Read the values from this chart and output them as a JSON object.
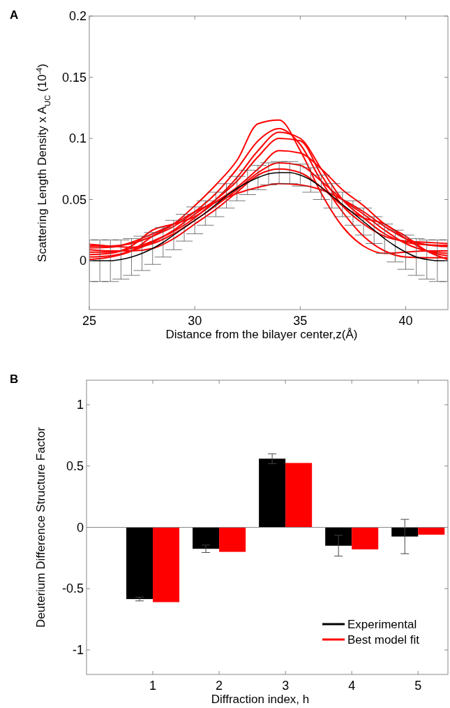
{
  "chart_data": [
    {
      "type": "line",
      "title": "A",
      "xlabel": "Distance from the bilayer center,z(Å)",
      "ylabel": "Scattering Length Density x A$_{UC}$ (10$^{-4}$)",
      "xlim": [
        25,
        42
      ],
      "ylim": [
        -0.04,
        0.2
      ],
      "xticks": [
        25,
        30,
        35,
        40
      ],
      "yticks": [
        0,
        0.05,
        0.1,
        0.15,
        0.2
      ],
      "grid": false,
      "legend": false,
      "series": [
        {
          "color": "#ff0000",
          "x": [
            25,
            26,
            27,
            28,
            29,
            30,
            31,
            32,
            33,
            34,
            35,
            36,
            37,
            38,
            39,
            40,
            41,
            42
          ],
          "values": [
            0.001,
            0.003,
            0.008,
            0.02,
            0.03,
            0.045,
            0.062,
            0.082,
            0.112,
            0.115,
            0.09,
            0.055,
            0.028,
            0.012,
            0.006,
            0.007,
            0.008,
            0.008
          ]
        },
        {
          "color": "#ff0000",
          "x": [
            25,
            26,
            27,
            28,
            29,
            30,
            31,
            32,
            33,
            34,
            35,
            36,
            37,
            38,
            39,
            40,
            41,
            42
          ],
          "values": [
            0.012,
            0.012,
            0.014,
            0.02,
            0.028,
            0.04,
            0.055,
            0.075,
            0.098,
            0.108,
            0.095,
            0.065,
            0.04,
            0.02,
            0.008,
            0.003,
            0.0025,
            0.0025
          ]
        },
        {
          "color": "#ff0000",
          "x": [
            25,
            26,
            27,
            28,
            29,
            30,
            31,
            32,
            33,
            34,
            35,
            36,
            37,
            38,
            39,
            40,
            41,
            42
          ],
          "values": [
            0.003,
            0.004,
            0.008,
            0.015,
            0.025,
            0.038,
            0.05,
            0.065,
            0.085,
            0.1,
            0.098,
            0.07,
            0.045,
            0.03,
            0.02,
            0.016,
            0.015,
            0.014
          ]
        },
        {
          "color": "#ff0000",
          "x": [
            25,
            26,
            27,
            28,
            29,
            30,
            31,
            32,
            33,
            34,
            35,
            36,
            37,
            38,
            39,
            40,
            41,
            42
          ],
          "values": [
            0.0135,
            0.012,
            0.011,
            0.014,
            0.022,
            0.033,
            0.045,
            0.058,
            0.072,
            0.08,
            0.078,
            0.065,
            0.05,
            0.038,
            0.025,
            0.014,
            0.008,
            0.006
          ]
        },
        {
          "color": "#ff0000",
          "x": [
            25,
            26,
            27,
            28,
            29,
            30,
            31,
            32,
            33,
            34,
            35,
            36,
            37,
            38,
            39,
            40,
            41,
            42
          ],
          "values": [
            0.0105,
            0.011,
            0.015,
            0.022,
            0.03,
            0.04,
            0.048,
            0.055,
            0.06,
            0.063,
            0.062,
            0.058,
            0.05,
            0.04,
            0.028,
            0.018,
            0.013,
            0.0115
          ]
        },
        {
          "color": "#ff0000",
          "x": [
            25,
            26,
            27,
            28,
            29,
            30,
            31,
            32,
            33,
            34,
            35,
            36,
            37,
            38,
            39,
            40,
            41,
            42
          ],
          "values": [
            0.005,
            0.006,
            0.012,
            0.025,
            0.03,
            0.036,
            0.048,
            0.06,
            0.075,
            0.09,
            0.088,
            0.075,
            0.058,
            0.045,
            0.03,
            0.02,
            0.008,
            0.001
          ]
        },
        {
          "color": "#ff0000",
          "x": [
            25,
            26,
            27,
            28,
            29,
            30,
            31,
            32,
            33,
            34,
            35,
            36,
            37,
            38,
            39,
            40,
            41,
            42
          ],
          "values": [
            0.007,
            0.007,
            0.01,
            0.016,
            0.024,
            0.035,
            0.05,
            0.068,
            0.09,
            0.105,
            0.1,
            0.075,
            0.05,
            0.035,
            0.022,
            0.015,
            0.013,
            0.0125
          ]
        },
        {
          "color": "#ff0000",
          "x": [
            25,
            26,
            27,
            28,
            29,
            30,
            31,
            32,
            33,
            34,
            35,
            36,
            37,
            38,
            39,
            40,
            41,
            42
          ],
          "values": [
            0.009,
            0.008,
            0.008,
            0.01,
            0.018,
            0.03,
            0.042,
            0.056,
            0.07,
            0.075,
            0.072,
            0.06,
            0.045,
            0.035,
            0.03,
            0.018,
            0.008,
            0.004
          ]
        },
        {
          "color": "#000000",
          "x": [
            25,
            25.5,
            26,
            26.5,
            27,
            27.5,
            28,
            28.5,
            29,
            29.5,
            30,
            30.5,
            31,
            31.5,
            32,
            32.5,
            33,
            33.5,
            34,
            34.5,
            35,
            35.5,
            36,
            36.5,
            37,
            37.5,
            38,
            38.5,
            39,
            39.5,
            40,
            40.5,
            41,
            41.5,
            42
          ],
          "values": [
            0,
            0,
            0,
            0.001,
            0.003,
            0.006,
            0.01,
            0.015,
            0.021,
            0.027,
            0.033,
            0.039,
            0.046,
            0.053,
            0.059,
            0.064,
            0.068,
            0.071,
            0.072,
            0.072,
            0.07,
            0.066,
            0.06,
            0.053,
            0.046,
            0.039,
            0.032,
            0.025,
            0.018,
            0.012,
            0.007,
            0.003,
            0.001,
            0,
            0
          ],
          "errors": [
            0.017,
            0.017,
            0.017,
            0.016,
            0.015,
            0.014,
            0.013,
            0.012,
            0.012,
            0.011,
            0.011,
            0.01,
            0.01,
            0.01,
            0.01,
            0.01,
            0.01,
            0.009,
            0.009,
            0.009,
            0.009,
            0.01,
            0.01,
            0.01,
            0.01,
            0.01,
            0.011,
            0.011,
            0.012,
            0.013,
            0.014,
            0.015,
            0.016,
            0.017,
            0.017
          ]
        }
      ]
    },
    {
      "type": "bar",
      "title": "B",
      "xlabel": "Diffraction index, h",
      "ylabel": "Deuterium Difference Structure Factor",
      "categories": [
        "1",
        "2",
        "3",
        "4",
        "5"
      ],
      "ylim": [
        -1.2,
        1.2
      ],
      "yticks": [
        -1,
        -0.5,
        0,
        0.5,
        1
      ],
      "grid": false,
      "legend": "bottom right",
      "ref_lines": [
        {
          "axis": "y",
          "value": 0
        }
      ],
      "series": [
        {
          "name": "Experimental",
          "color": "#000000",
          "values": [
            -0.585,
            -0.175,
            0.56,
            -0.15,
            -0.075
          ],
          "errors": [
            0.015,
            0.03,
            0.04,
            0.085,
            0.14
          ]
        },
        {
          "name": "Best model fit",
          "color": "#ff0000",
          "values": [
            -0.61,
            -0.2,
            0.525,
            -0.18,
            -0.06
          ]
        }
      ]
    }
  ]
}
